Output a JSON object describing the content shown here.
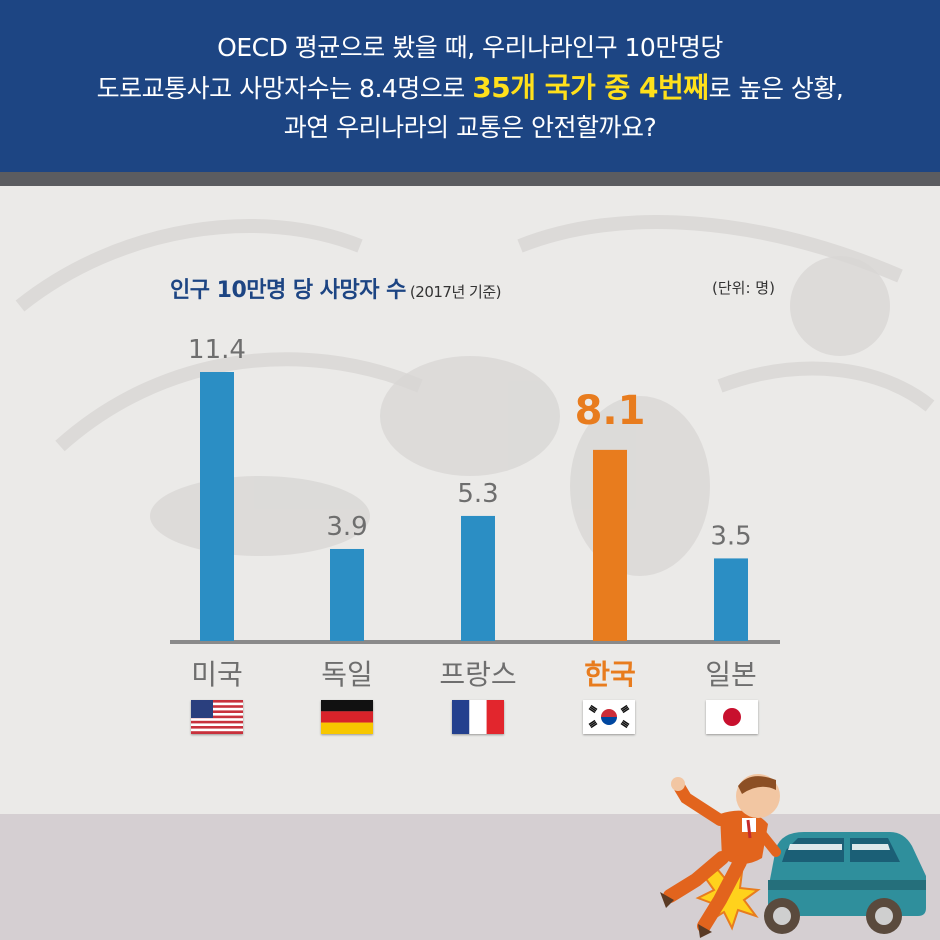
{
  "header": {
    "line1": "OECD 평균으로 봤을 때, 우리나라인구 10만명당",
    "line2_pre": "도로교통사고 사망자수는 8.4명으로 ",
    "line2_highlight": "35개 국가 중 4번째",
    "line2_post": "로 높은 상황,",
    "line3": "과연 우리나라의 교통은 안전할까요?"
  },
  "colors": {
    "header_bg": "#1d4583",
    "highlight": "#ffe01b",
    "bar_default": "#2b8ec4",
    "bar_highlight": "#e87c1e",
    "label_default": "#6e6e6e"
  },
  "chart_data": {
    "type": "bar",
    "title": "인구 10만명 당 사망자 수",
    "subtitle": "(2017년 기준)",
    "unit_note": "(단위: 명)",
    "categories": [
      "미국",
      "독일",
      "프랑스",
      "한국",
      "일본"
    ],
    "values": [
      11.4,
      3.9,
      5.3,
      8.1,
      3.5
    ],
    "value_labels": [
      "11.4",
      "3.9",
      "5.3",
      "8.1",
      "3.5"
    ],
    "highlight_category": "한국",
    "ylim": [
      0,
      11.4
    ],
    "grid": false,
    "legend": "none"
  },
  "flags": [
    {
      "country": "미국",
      "icon": "us-flag-icon"
    },
    {
      "country": "독일",
      "icon": "germany-flag-icon"
    },
    {
      "country": "프랑스",
      "icon": "france-flag-icon"
    },
    {
      "country": "한국",
      "icon": "korea-flag-icon"
    },
    {
      "country": "일본",
      "icon": "japan-flag-icon"
    }
  ],
  "illustration": "man-hit-by-car-illustration"
}
